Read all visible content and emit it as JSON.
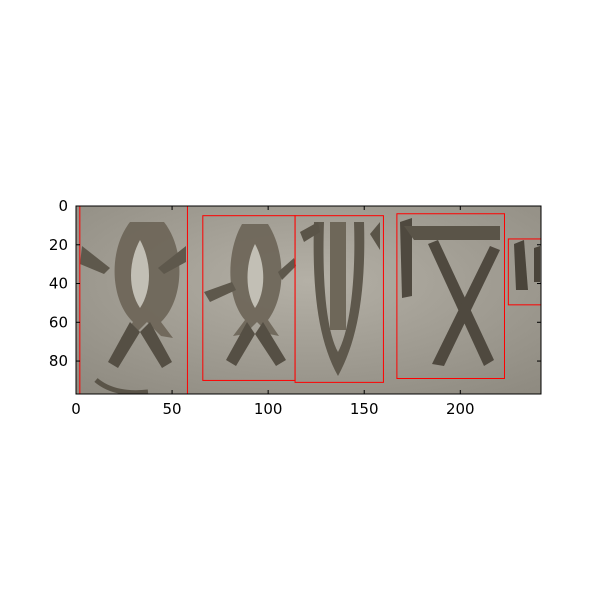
{
  "chart_data": {
    "type": "image",
    "title": "",
    "xlabel": "",
    "ylabel": "",
    "xlim": [
      0,
      242
    ],
    "ylim": [
      97,
      0
    ],
    "xticks": [
      0,
      50,
      100,
      150,
      200
    ],
    "yticks": [
      0,
      20,
      40,
      60,
      80
    ],
    "grid": false,
    "legend": "none",
    "image_content": "carved stone relief glyphs",
    "colors": {
      "stone_base": "#9e9b92",
      "stone_light": "#c4c1b8",
      "stone_dark": "#605a4e",
      "stone_shadow": "#4a443a",
      "bbox_stroke": "#ff0000"
    },
    "boxes": [
      {
        "id": "glyph-1",
        "x0": 2,
        "y0": 0,
        "x1": 58,
        "y1": 97
      },
      {
        "id": "glyph-2",
        "x0": 66,
        "y0": 5,
        "x1": 114,
        "y1": 90
      },
      {
        "id": "glyph-3",
        "x0": 114,
        "y0": 5,
        "x1": 160,
        "y1": 91
      },
      {
        "id": "glyph-4",
        "x0": 167,
        "y0": 4,
        "x1": 223,
        "y1": 89
      },
      {
        "id": "glyph-5",
        "x0": 225,
        "y0": 17,
        "x1": 242,
        "y1": 51
      }
    ]
  }
}
